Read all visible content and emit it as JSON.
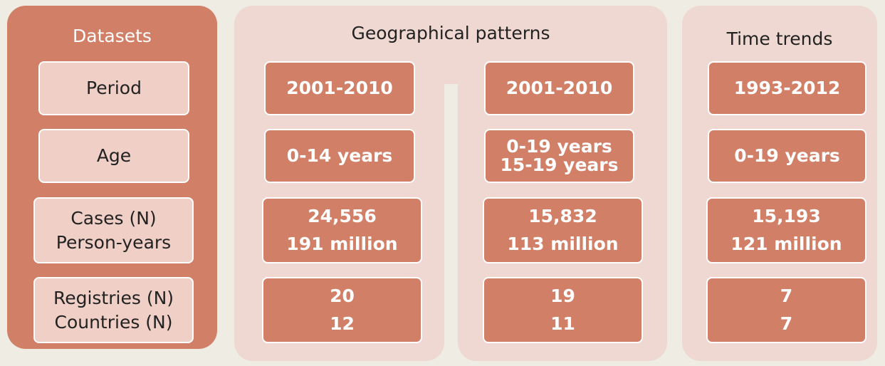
{
  "datasets": {
    "title": "Datasets",
    "rows": [
      [
        "Period"
      ],
      [
        "Age"
      ],
      [
        "Cases (N)",
        "Person-years"
      ],
      [
        "Registries (N)",
        "Countries (N)"
      ]
    ]
  },
  "geographical_patterns": {
    "title": "Geographical patterns",
    "columns": [
      {
        "rows": [
          [
            "2001-2010"
          ],
          [
            "0-14 years"
          ],
          [
            "24,556",
            "191 million"
          ],
          [
            "20",
            "12"
          ]
        ]
      },
      {
        "rows": [
          [
            "2001-2010"
          ],
          [
            "0-19 years",
            "15-19 years"
          ],
          [
            "15,832",
            "113 million"
          ],
          [
            "19",
            "11"
          ]
        ]
      }
    ]
  },
  "time_trends": {
    "title": "Time trends",
    "rows": [
      [
        "1993-2012"
      ],
      [
        "0-19 years"
      ],
      [
        "15,193",
        "121 million"
      ],
      [
        "7",
        "7"
      ]
    ]
  }
}
